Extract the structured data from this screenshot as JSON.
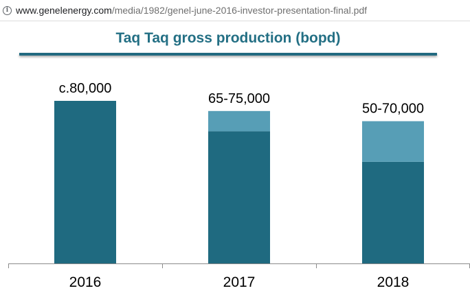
{
  "browser": {
    "url_host": "www.genelenergy.com",
    "url_path": "/media/1982/genel-june-2016-investor-presentation-final.pdf",
    "info_icon": "info-icon"
  },
  "colors": {
    "base": "#1f6a80",
    "range": "#579eb6",
    "title": "#236f84",
    "axis": "#8a8a8a"
  },
  "chart_data": {
    "type": "bar",
    "stacked": true,
    "title": "Taq Taq gross production (bopd)",
    "xlabel": "",
    "ylabel": "",
    "ylim": [
      0,
      80000
    ],
    "grid": false,
    "categories": [
      "2016",
      "2017",
      "2018"
    ],
    "series": [
      {
        "values": [
          80000,
          65000,
          50000
        ]
      },
      {
        "values": [
          0,
          10000,
          20000
        ]
      }
    ],
    "data_labels": [
      "c.80,000",
      "65-75,000",
      "50-70,000"
    ]
  }
}
